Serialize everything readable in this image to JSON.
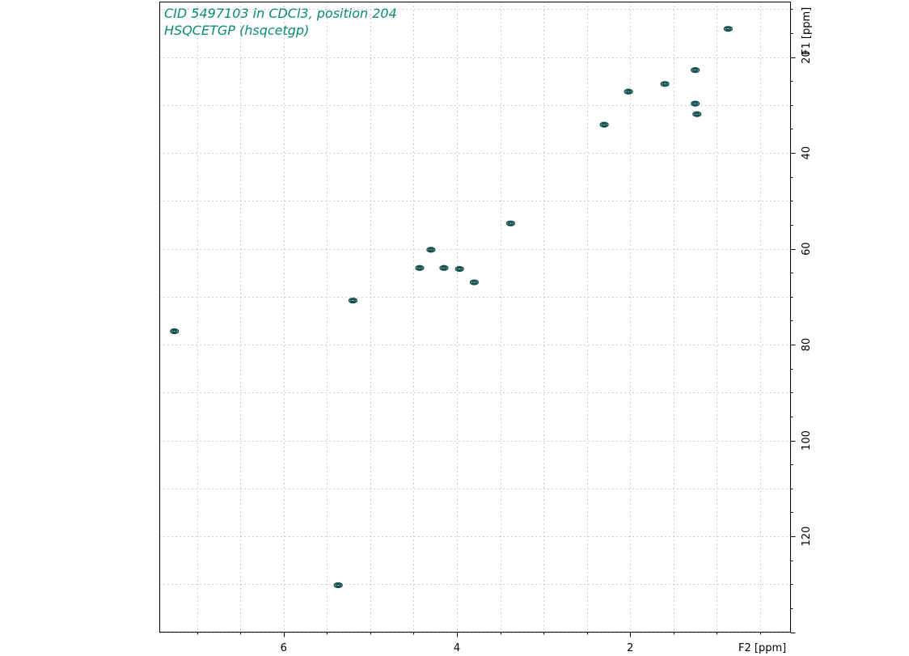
{
  "chart_data": {
    "type": "scatter",
    "title": "CID 5497103 in CDCl3, position 204",
    "subtitle": "HSQCETGP (hsqcetgp)",
    "xlabel": "F2 [ppm]",
    "ylabel": "F1 [ppm]",
    "xlim": [
      7.43,
      0.15
    ],
    "ylim": [
      8.5,
      140
    ],
    "x_ticks": [
      6,
      4,
      2
    ],
    "y_ticks": [
      20,
      40,
      60,
      80,
      100,
      120
    ],
    "x_grid_step": 0.5,
    "y_grid_step": 10,
    "grid": true,
    "color": "#0b8a73",
    "contour_color": "#0f4d4d",
    "peaks": [
      {
        "x": 0.87,
        "y": 14.1
      },
      {
        "x": 1.25,
        "y": 22.7
      },
      {
        "x": 1.25,
        "y": 29.7
      },
      {
        "x": 1.23,
        "y": 31.9
      },
      {
        "x": 1.6,
        "y": 25.6
      },
      {
        "x": 2.02,
        "y": 27.2
      },
      {
        "x": 2.3,
        "y": 34.1
      },
      {
        "x": 3.38,
        "y": 54.7
      },
      {
        "x": 3.8,
        "y": 67.0
      },
      {
        "x": 3.97,
        "y": 64.2
      },
      {
        "x": 4.15,
        "y": 64.0
      },
      {
        "x": 4.3,
        "y": 60.2
      },
      {
        "x": 4.43,
        "y": 64.0
      },
      {
        "x": 5.2,
        "y": 70.8
      },
      {
        "x": 5.37,
        "y": 130.2
      },
      {
        "x": 7.26,
        "y": 77.2
      }
    ]
  }
}
